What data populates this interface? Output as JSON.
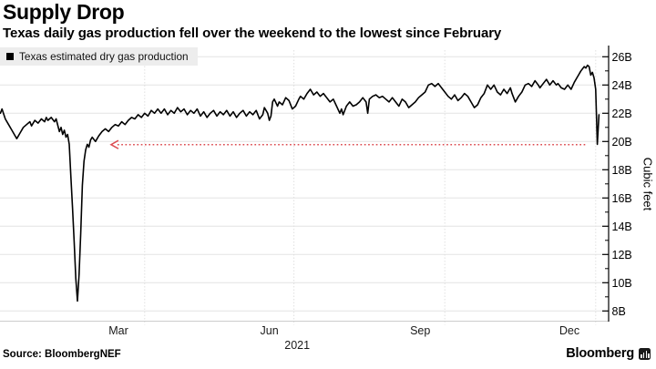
{
  "header": {
    "title": "Supply Drop",
    "subtitle": "Texas daily gas production fell over the weekend to the lowest since February"
  },
  "legend": {
    "label": "Texas estimated dry gas production",
    "swatch_color": "#000000"
  },
  "footer": {
    "source": "Source: BloombergNEF",
    "brand": "Bloomberg"
  },
  "colors": {
    "line": "#000000",
    "arrow": "#dc4b50",
    "grid_h": "#e3e3e3",
    "grid_v": "#e0e0e0",
    "axis": "#000000",
    "axis_bottom": "#cccccc",
    "legend_bg": "#ededed",
    "text": "#1a1a1a"
  },
  "chart_data": {
    "type": "line",
    "title": "Supply Drop",
    "subtitle": "Texas daily gas production fell over the weekend to the lowest since February",
    "ylabel": "Cubic feet",
    "y_unit": "billion cubic feet",
    "ylim": [
      7.5,
      26.5
    ],
    "grid": true,
    "legend_position": "top-left",
    "y_ticks": [
      {
        "value": 8,
        "label": "8B"
      },
      {
        "value": 10,
        "label": "10B"
      },
      {
        "value": 12,
        "label": "12B"
      },
      {
        "value": 14,
        "label": "14B"
      },
      {
        "value": 16,
        "label": "16B"
      },
      {
        "value": 18,
        "label": "18B"
      },
      {
        "value": 20,
        "label": "20B"
      },
      {
        "value": 22,
        "label": "22B"
      },
      {
        "value": 24,
        "label": "24B"
      },
      {
        "value": 26,
        "label": "26B"
      }
    ],
    "y_minor_ticks": [
      9,
      11,
      13,
      15,
      17,
      19,
      21,
      23,
      25
    ],
    "x_unit": "days since 2021-01-01",
    "x_ticks": [
      {
        "day": 74,
        "label": "Mar"
      },
      {
        "day": 166,
        "label": "Jun"
      },
      {
        "day": 258,
        "label": "Sep"
      },
      {
        "day": 349,
        "label": "Dec"
      }
    ],
    "x_gridline_days": [
      90,
      181,
      273,
      365
    ],
    "x_year_label": {
      "day": 183,
      "label": "2021"
    },
    "annotation": {
      "type": "arrow",
      "value": 19.9,
      "from_day": 360,
      "to_day": 69.5,
      "direction": "left"
    },
    "series": [
      {
        "name": "Texas estimated dry gas production",
        "unit": "billion cubic feet",
        "points": [
          [
            2,
            22.0
          ],
          [
            3,
            22.3
          ],
          [
            5,
            21.6
          ],
          [
            7,
            21.2
          ],
          [
            9,
            20.8
          ],
          [
            11,
            20.4
          ],
          [
            12,
            20.2
          ],
          [
            14,
            20.6
          ],
          [
            16,
            21.0
          ],
          [
            18,
            21.2
          ],
          [
            20,
            21.4
          ],
          [
            21,
            21.1
          ],
          [
            23,
            21.5
          ],
          [
            25,
            21.3
          ],
          [
            27,
            21.6
          ],
          [
            29,
            21.4
          ],
          [
            30,
            21.7
          ],
          [
            31,
            21.5
          ],
          [
            33,
            21.7
          ],
          [
            35,
            21.4
          ],
          [
            36,
            21.6
          ],
          [
            38,
            20.7
          ],
          [
            39,
            21.0
          ],
          [
            40,
            20.5
          ],
          [
            41,
            20.8
          ],
          [
            42,
            20.3
          ],
          [
            43,
            20.5
          ],
          [
            44,
            19.8
          ],
          [
            45,
            17.5
          ],
          [
            46,
            15.3
          ],
          [
            47,
            12.9
          ],
          [
            48,
            10.3
          ],
          [
            49,
            8.7
          ],
          [
            50,
            10.6
          ],
          [
            51,
            13.5
          ],
          [
            52,
            16.9
          ],
          [
            53,
            18.6
          ],
          [
            54,
            19.4
          ],
          [
            55,
            19.8
          ],
          [
            56,
            19.6
          ],
          [
            57,
            20.1
          ],
          [
            58,
            20.3
          ],
          [
            60,
            20.0
          ],
          [
            62,
            20.4
          ],
          [
            64,
            20.7
          ],
          [
            66,
            20.9
          ],
          [
            68,
            20.7
          ],
          [
            70,
            21.0
          ],
          [
            72,
            21.2
          ],
          [
            74,
            21.1
          ],
          [
            76,
            21.4
          ],
          [
            78,
            21.2
          ],
          [
            80,
            21.5
          ],
          [
            82,
            21.7
          ],
          [
            84,
            21.6
          ],
          [
            86,
            21.9
          ],
          [
            88,
            21.7
          ],
          [
            90,
            22.0
          ],
          [
            92,
            21.8
          ],
          [
            94,
            22.2
          ],
          [
            96,
            22.0
          ],
          [
            98,
            22.3
          ],
          [
            100,
            22.0
          ],
          [
            102,
            22.3
          ],
          [
            104,
            21.9
          ],
          [
            106,
            22.2
          ],
          [
            108,
            22.0
          ],
          [
            110,
            22.4
          ],
          [
            112,
            22.1
          ],
          [
            114,
            22.3
          ],
          [
            116,
            21.9
          ],
          [
            118,
            22.2
          ],
          [
            120,
            22.0
          ],
          [
            122,
            22.3
          ],
          [
            124,
            21.8
          ],
          [
            126,
            22.1
          ],
          [
            128,
            21.7
          ],
          [
            130,
            22.0
          ],
          [
            132,
            22.2
          ],
          [
            134,
            21.8
          ],
          [
            136,
            22.1
          ],
          [
            138,
            21.9
          ],
          [
            140,
            22.2
          ],
          [
            142,
            21.8
          ],
          [
            144,
            22.1
          ],
          [
            146,
            21.7
          ],
          [
            148,
            22.0
          ],
          [
            150,
            22.2
          ],
          [
            152,
            21.8
          ],
          [
            154,
            22.1
          ],
          [
            156,
            21.9
          ],
          [
            158,
            22.2
          ],
          [
            160,
            21.6
          ],
          [
            162,
            21.9
          ],
          [
            163,
            22.4
          ],
          [
            164,
            22.2
          ],
          [
            165,
            22.0
          ],
          [
            166,
            21.5
          ],
          [
            167,
            21.8
          ],
          [
            168,
            22.8
          ],
          [
            169,
            23.0
          ],
          [
            171,
            22.5
          ],
          [
            172,
            22.8
          ],
          [
            174,
            22.6
          ],
          [
            176,
            23.1
          ],
          [
            178,
            22.9
          ],
          [
            180,
            22.3
          ],
          [
            182,
            22.5
          ],
          [
            184,
            23.0
          ],
          [
            185,
            23.2
          ],
          [
            187,
            23.0
          ],
          [
            189,
            23.4
          ],
          [
            191,
            23.7
          ],
          [
            193,
            23.3
          ],
          [
            195,
            23.5
          ],
          [
            197,
            23.2
          ],
          [
            199,
            23.4
          ],
          [
            201,
            23.1
          ],
          [
            203,
            22.8
          ],
          [
            205,
            23.0
          ],
          [
            207,
            22.5
          ],
          [
            209,
            22.0
          ],
          [
            210,
            22.3
          ],
          [
            211,
            21.9
          ],
          [
            213,
            22.5
          ],
          [
            215,
            22.8
          ],
          [
            217,
            22.5
          ],
          [
            219,
            22.6
          ],
          [
            221,
            22.8
          ],
          [
            223,
            23.1
          ],
          [
            225,
            22.8
          ],
          [
            226,
            22.0
          ],
          [
            227,
            23.0
          ],
          [
            229,
            23.2
          ],
          [
            231,
            23.3
          ],
          [
            233,
            23.1
          ],
          [
            235,
            23.2
          ],
          [
            237,
            23.0
          ],
          [
            239,
            22.8
          ],
          [
            241,
            23.1
          ],
          [
            243,
            22.8
          ],
          [
            245,
            22.5
          ],
          [
            247,
            23.0
          ],
          [
            249,
            22.8
          ],
          [
            251,
            22.4
          ],
          [
            253,
            22.6
          ],
          [
            255,
            22.8
          ],
          [
            257,
            23.1
          ],
          [
            259,
            23.3
          ],
          [
            261,
            23.5
          ],
          [
            263,
            24.0
          ],
          [
            265,
            24.1
          ],
          [
            267,
            23.9
          ],
          [
            269,
            24.1
          ],
          [
            271,
            23.8
          ],
          [
            273,
            23.5
          ],
          [
            275,
            23.2
          ],
          [
            277,
            23.0
          ],
          [
            279,
            23.3
          ],
          [
            281,
            22.9
          ],
          [
            283,
            23.1
          ],
          [
            285,
            23.4
          ],
          [
            287,
            23.2
          ],
          [
            289,
            22.8
          ],
          [
            291,
            22.4
          ],
          [
            293,
            22.6
          ],
          [
            295,
            23.1
          ],
          [
            297,
            23.4
          ],
          [
            299,
            24.0
          ],
          [
            301,
            23.7
          ],
          [
            303,
            24.0
          ],
          [
            305,
            23.5
          ],
          [
            307,
            23.3
          ],
          [
            309,
            23.7
          ],
          [
            311,
            23.4
          ],
          [
            313,
            23.8
          ],
          [
            314,
            23.4
          ],
          [
            316,
            22.8
          ],
          [
            318,
            23.2
          ],
          [
            320,
            23.5
          ],
          [
            322,
            24.0
          ],
          [
            324,
            24.1
          ],
          [
            326,
            23.9
          ],
          [
            328,
            24.3
          ],
          [
            330,
            24.0
          ],
          [
            331,
            23.8
          ],
          [
            333,
            24.1
          ],
          [
            335,
            24.4
          ],
          [
            337,
            24.0
          ],
          [
            339,
            24.3
          ],
          [
            341,
            24.0
          ],
          [
            342,
            24.1
          ],
          [
            344,
            23.8
          ],
          [
            346,
            23.7
          ],
          [
            348,
            24.0
          ],
          [
            350,
            23.7
          ],
          [
            352,
            24.2
          ],
          [
            354,
            24.6
          ],
          [
            356,
            25.0
          ],
          [
            358,
            25.3
          ],
          [
            359,
            25.2
          ],
          [
            360,
            25.4
          ],
          [
            361,
            25.3
          ],
          [
            362,
            24.7
          ],
          [
            363,
            24.9
          ],
          [
            364,
            24.5
          ],
          [
            365,
            23.7
          ],
          [
            366,
            19.8
          ],
          [
            367,
            21.9
          ]
        ]
      }
    ]
  }
}
